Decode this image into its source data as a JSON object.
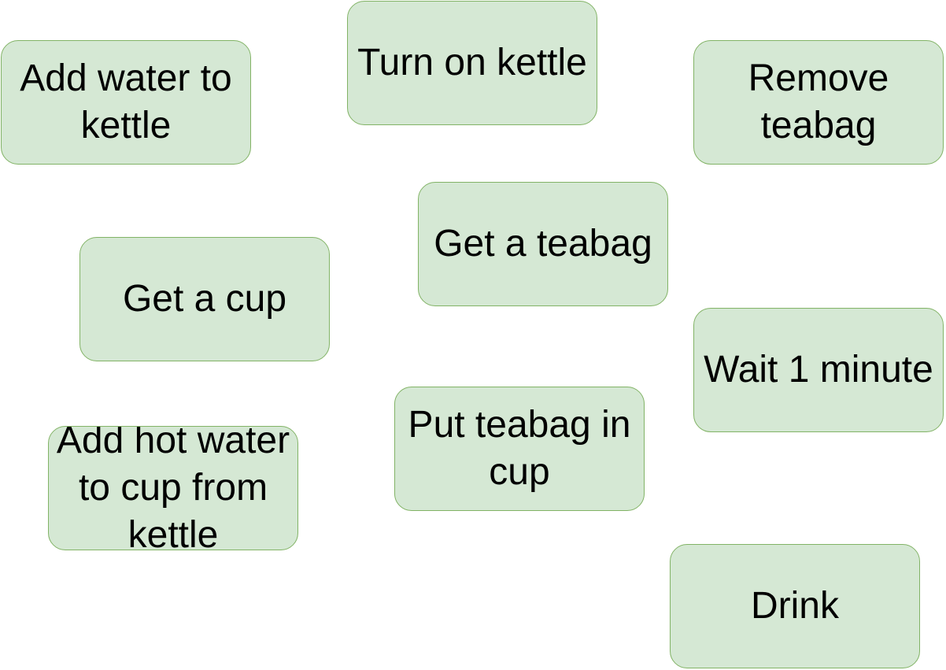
{
  "colors": {
    "box_fill": "#d5e8d4",
    "box_border": "#82b366",
    "text": "#000000",
    "background": "#ffffff"
  },
  "steps": [
    {
      "id": "add-water",
      "label": "Add water to kettle"
    },
    {
      "id": "turn-on",
      "label": "Turn on kettle"
    },
    {
      "id": "remove-teabag",
      "label": "Remove teabag"
    },
    {
      "id": "get-teabag",
      "label": "Get a teabag"
    },
    {
      "id": "get-cup",
      "label": "Get a cup"
    },
    {
      "id": "wait",
      "label": "Wait 1 minute"
    },
    {
      "id": "add-hot-water",
      "label": "Add hot water to cup from kettle"
    },
    {
      "id": "put-teabag",
      "label": "Put teabag in cup"
    },
    {
      "id": "drink",
      "label": "Drink"
    }
  ]
}
